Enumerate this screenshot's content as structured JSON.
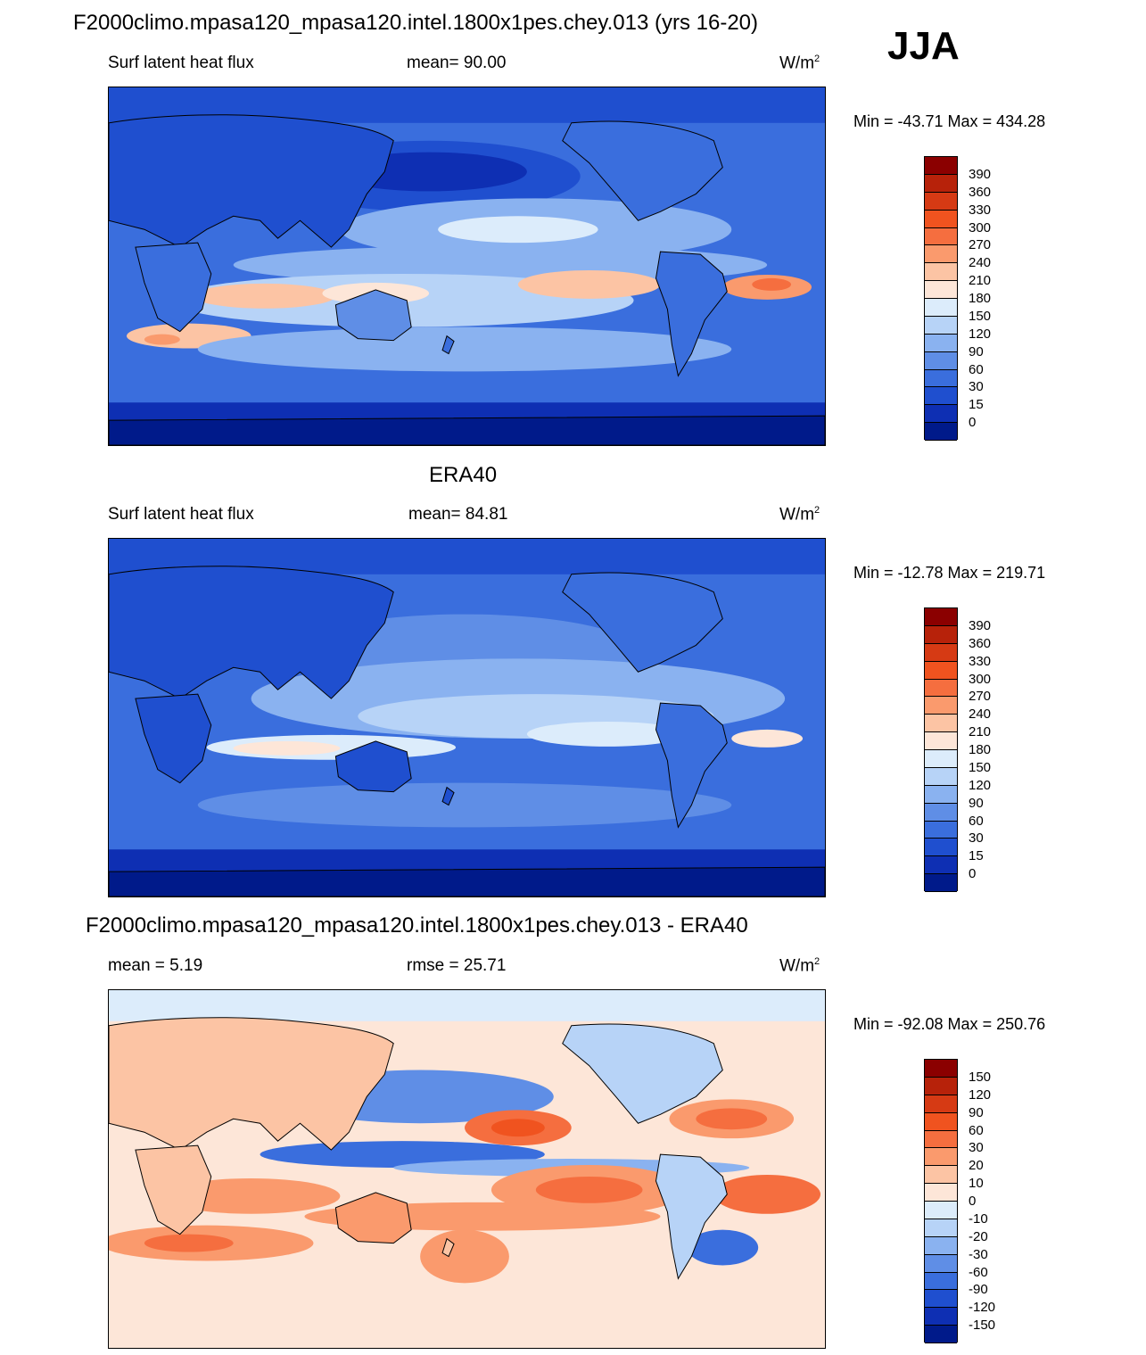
{
  "season": "JJA",
  "panels": [
    {
      "title": "F2000climo.mpasa120_mpasa120.intel.1800x1pes.chey.013 (yrs 16-20)",
      "left_label": "Surf latent heat flux",
      "center_label": "mean=  90.00",
      "units": "W/m",
      "units_sup": "2",
      "minmax": "Min = -43.71 Max = 434.28",
      "ticks": [
        "390",
        "360",
        "330",
        "300",
        "270",
        "240",
        "210",
        "180",
        "150",
        "120",
        "90",
        "60",
        "30",
        "15",
        "0"
      ],
      "colors": [
        "#8b0000",
        "#b7220a",
        "#d63a14",
        "#f0531f",
        "#f56e3f",
        "#fa9a6d",
        "#fcc4a4",
        "#fde6d8",
        "#dcecfb",
        "#b7d3f7",
        "#8ab2f0",
        "#5f8ee6",
        "#3a6edd",
        "#1f4fcf",
        "#0e2fb3",
        "#001a8a"
      ]
    },
    {
      "title": "ERA40",
      "left_label": "Surf latent heat flux",
      "center_label": "mean=  84.81",
      "units": "W/m",
      "units_sup": "2",
      "minmax": "Min = -12.78 Max = 219.71",
      "ticks": [
        "390",
        "360",
        "330",
        "300",
        "270",
        "240",
        "210",
        "180",
        "150",
        "120",
        "90",
        "60",
        "30",
        "15",
        "0"
      ],
      "colors": [
        "#8b0000",
        "#b7220a",
        "#d63a14",
        "#f0531f",
        "#f56e3f",
        "#fa9a6d",
        "#fcc4a4",
        "#fde6d8",
        "#dcecfb",
        "#b7d3f7",
        "#8ab2f0",
        "#5f8ee6",
        "#3a6edd",
        "#1f4fcf",
        "#0e2fb3",
        "#001a8a"
      ]
    },
    {
      "title": "F2000climo.mpasa120_mpasa120.intel.1800x1pes.chey.013 - ERA40",
      "left_label": "mean =   5.19",
      "center_label": "rmse =  25.71",
      "units": "W/m",
      "units_sup": "2",
      "minmax": "Min = -92.08 Max = 250.76",
      "ticks": [
        "150",
        "120",
        "90",
        "60",
        "30",
        "20",
        "10",
        "0",
        "-10",
        "-20",
        "-30",
        "-60",
        "-90",
        "-120",
        "-150"
      ],
      "colors": [
        "#8b0000",
        "#b7220a",
        "#d63a14",
        "#f0531f",
        "#f56e3f",
        "#fa9a6d",
        "#fcc4a4",
        "#fde6d8",
        "#dcecfb",
        "#b7d3f7",
        "#8ab2f0",
        "#5f8ee6",
        "#3a6edd",
        "#1f4fcf",
        "#0e2fb3",
        "#001a8a"
      ]
    }
  ]
}
